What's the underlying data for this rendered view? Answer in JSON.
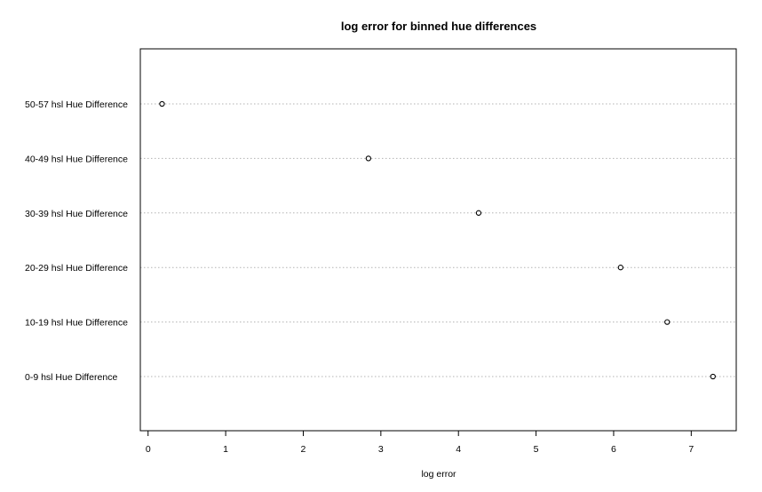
{
  "chart_data": {
    "type": "scatter",
    "title": "log error for binned hue differences",
    "xlabel": "log error",
    "ylabel": "",
    "xlim": [
      -0.1,
      7.58
    ],
    "xticks": [
      0,
      1,
      2,
      3,
      4,
      5,
      6,
      7
    ],
    "grid": "horizontal dotted",
    "categories": [
      "0-9 hsl Hue Difference",
      "10-19 hsl Hue Difference",
      "20-29 hsl Hue Difference",
      "30-39 hsl Hue Difference",
      "40-49 hsl Hue Difference",
      "50-57 hsl Hue Difference"
    ],
    "values": [
      7.28,
      6.69,
      6.09,
      4.26,
      2.84,
      0.18
    ]
  }
}
